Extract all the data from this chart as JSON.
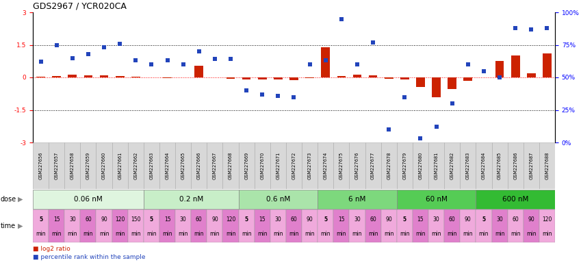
{
  "title": "GDS2967 / YCR020CA",
  "samples": [
    "GSM227656",
    "GSM227657",
    "GSM227658",
    "GSM227659",
    "GSM227660",
    "GSM227661",
    "GSM227662",
    "GSM227663",
    "GSM227664",
    "GSM227665",
    "GSM227666",
    "GSM227667",
    "GSM227668",
    "GSM227669",
    "GSM227670",
    "GSM227671",
    "GSM227672",
    "GSM227673",
    "GSM227674",
    "GSM227675",
    "GSM227676",
    "GSM227677",
    "GSM227678",
    "GSM227679",
    "GSM227680",
    "GSM227681",
    "GSM227682",
    "GSM227683",
    "GSM227684",
    "GSM227685",
    "GSM227686",
    "GSM227687",
    "GSM227688"
  ],
  "log2_ratio": [
    0.02,
    0.05,
    0.12,
    0.08,
    0.08,
    0.07,
    0.02,
    0.0,
    -0.02,
    -0.01,
    0.55,
    0.0,
    -0.06,
    -0.1,
    -0.09,
    -0.1,
    -0.12,
    -0.04,
    1.4,
    0.05,
    0.12,
    0.1,
    -0.05,
    -0.1,
    -0.45,
    -0.9,
    -0.55,
    -0.15,
    0.0,
    0.75,
    1.0,
    0.18,
    1.1
  ],
  "percentile_rank": [
    62,
    75,
    65,
    68,
    73,
    76,
    63,
    60,
    63,
    60,
    70,
    64,
    64,
    40,
    37,
    36,
    35,
    60,
    63,
    95,
    60,
    77,
    10,
    35,
    3,
    12,
    30,
    60,
    55,
    50,
    88,
    87,
    88
  ],
  "dose_groups": [
    {
      "label": "0.06 nM",
      "start": 0,
      "end": 7
    },
    {
      "label": "0.2 nM",
      "start": 7,
      "end": 13
    },
    {
      "label": "0.6 nM",
      "start": 13,
      "end": 18
    },
    {
      "label": "6 nM",
      "start": 18,
      "end": 23
    },
    {
      "label": "60 nM",
      "start": 23,
      "end": 28
    },
    {
      "label": "600 nM",
      "start": 28,
      "end": 33
    }
  ],
  "dose_colors": [
    "#dff5df",
    "#c8eec8",
    "#aae4aa",
    "#7dd87d",
    "#55cc55",
    "#33bb33"
  ],
  "time_labels_per_group": [
    [
      "5",
      "15",
      "30",
      "60",
      "90",
      "120",
      "150"
    ],
    [
      "5",
      "15",
      "30",
      "60",
      "90",
      "120"
    ],
    [
      "5",
      "15",
      "30",
      "60",
      "90"
    ],
    [
      "5",
      "15",
      "30",
      "60",
      "90"
    ],
    [
      "5",
      "15",
      "30",
      "60",
      "90"
    ],
    [
      "5",
      "30",
      "60",
      "90",
      "120"
    ]
  ],
  "time_colors_even": "#f0aadc",
  "time_colors_odd": "#e080cc",
  "bar_color": "#cc2200",
  "dot_color": "#2244bb",
  "bar_width": 0.55,
  "bg_color": "#ffffff",
  "sample_bg": "#d8d8d8",
  "ytick_labels_left": [
    "-3",
    "-1.5",
    "0",
    "1.5",
    "3"
  ],
  "ytick_labels_right": [
    "0%",
    "25%",
    "50%",
    "75%",
    "100%"
  ],
  "title_fontsize": 9,
  "tick_fontsize": 6.5,
  "sample_fontsize": 4.8,
  "dose_fontsize": 7.5,
  "time_fontsize": 5.5
}
